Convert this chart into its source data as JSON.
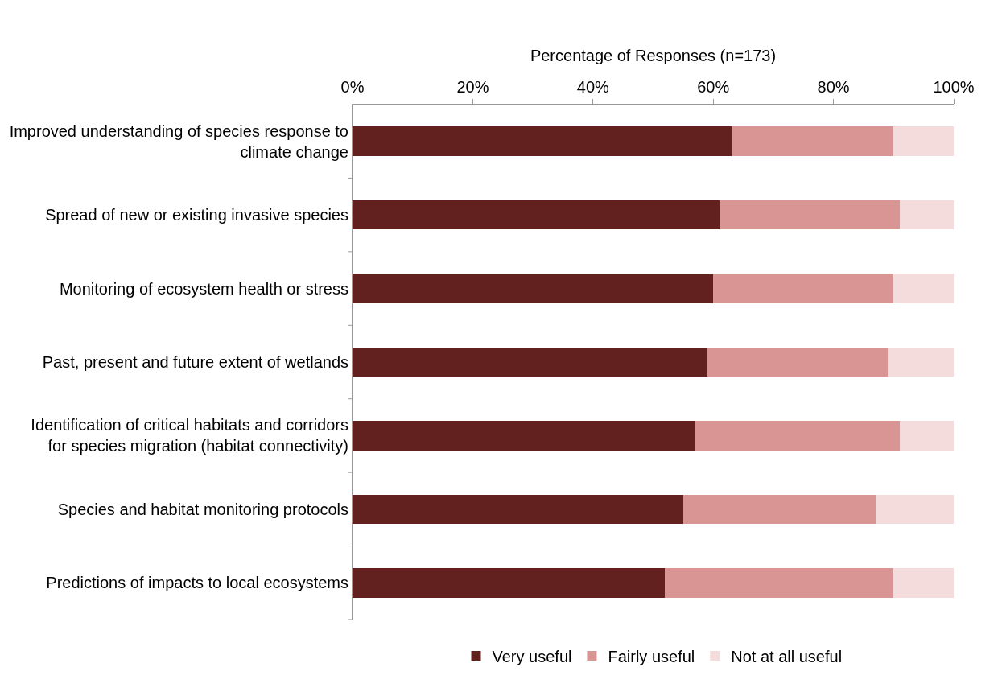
{
  "chart_data": {
    "type": "bar",
    "orientation": "horizontal",
    "stacked": true,
    "xlabel": "Percentage of Responses (n=173)",
    "categories": [
      "Improved understanding of species response to climate change",
      "Spread of new or existing invasive species",
      "Monitoring of ecosystem health or stress",
      "Past, present and future extent of wetlands",
      "Identification of critical habitats and corridors for species migration (habitat connectivity)",
      "Species and habitat monitoring protocols",
      "Predictions of impacts to local ecosystems"
    ],
    "series": [
      {
        "name": "Very useful",
        "color": "#62211f",
        "values": [
          63,
          61,
          60,
          59,
          57,
          55,
          52
        ]
      },
      {
        "name": "Fairly useful",
        "color": "#d99594",
        "values": [
          27,
          30,
          30,
          30,
          34,
          32,
          38
        ]
      },
      {
        "name": "Not at all useful",
        "color": "#f4dcdc",
        "values": [
          10,
          9,
          10,
          11,
          9,
          13,
          10
        ]
      }
    ],
    "xlim": [
      0,
      100
    ],
    "xticks": [
      {
        "value": 0,
        "label": "0%"
      },
      {
        "value": 20,
        "label": "20%"
      },
      {
        "value": 40,
        "label": "40%"
      },
      {
        "value": 60,
        "label": "60%"
      },
      {
        "value": 80,
        "label": "80%"
      },
      {
        "value": 100,
        "label": "100%"
      }
    ],
    "legend": "bottom"
  }
}
